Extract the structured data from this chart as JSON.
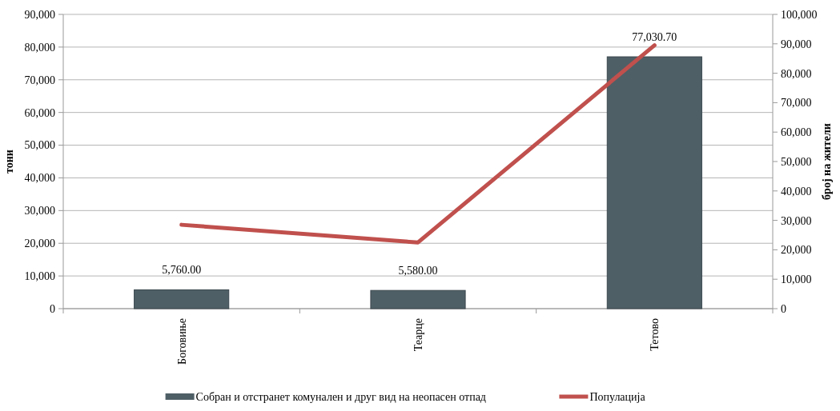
{
  "chart_data": {
    "type": "bar",
    "ylabel": "тони",
    "y2label": "број на жители",
    "categories": [
      "Боговиње",
      "Теарце",
      "Тетово"
    ],
    "series": [
      {
        "name": "Собран и отстранет комунален и друг вид на неопасен отпад",
        "color": "#4f5f66",
        "values": [
          5760,
          5580,
          77030.7
        ],
        "value_labels": [
          "5,760.00",
          "5,580.00",
          "77,030.70"
        ]
      },
      {
        "name": "Популација",
        "type": "line",
        "axis": "y2",
        "color": "#c0504d",
        "values": [
          28500,
          22500,
          89500
        ]
      }
    ],
    "ylim": [
      0,
      90000
    ],
    "yticks": [
      {
        "value": 0,
        "label": "0"
      },
      {
        "value": 10000,
        "label": "10,000"
      },
      {
        "value": 20000,
        "label": "20,000"
      },
      {
        "value": 30000,
        "label": "30,000"
      },
      {
        "value": 40000,
        "label": "40,000"
      },
      {
        "value": 50000,
        "label": "50,000"
      },
      {
        "value": 60000,
        "label": "60,000"
      },
      {
        "value": 70000,
        "label": "70,000"
      },
      {
        "value": 80000,
        "label": "80,000"
      },
      {
        "value": 90000,
        "label": "90,000"
      }
    ],
    "y2lim": [
      0,
      100000
    ],
    "y2ticks": [
      {
        "value": 0,
        "label": "0"
      },
      {
        "value": 10000,
        "label": "10,000"
      },
      {
        "value": 20000,
        "label": "20,000"
      },
      {
        "value": 30000,
        "label": "30,000"
      },
      {
        "value": 40000,
        "label": "40,000"
      },
      {
        "value": 50000,
        "label": "50,000"
      },
      {
        "value": 60000,
        "label": "60,000"
      },
      {
        "value": 70000,
        "label": "70,000"
      },
      {
        "value": 80000,
        "label": "80,000"
      },
      {
        "value": 90000,
        "label": "90,000"
      },
      {
        "value": 100000,
        "label": "100,000"
      }
    ],
    "grid": "y",
    "legend": "bottom",
    "marker": "none",
    "line_style": "solid"
  }
}
